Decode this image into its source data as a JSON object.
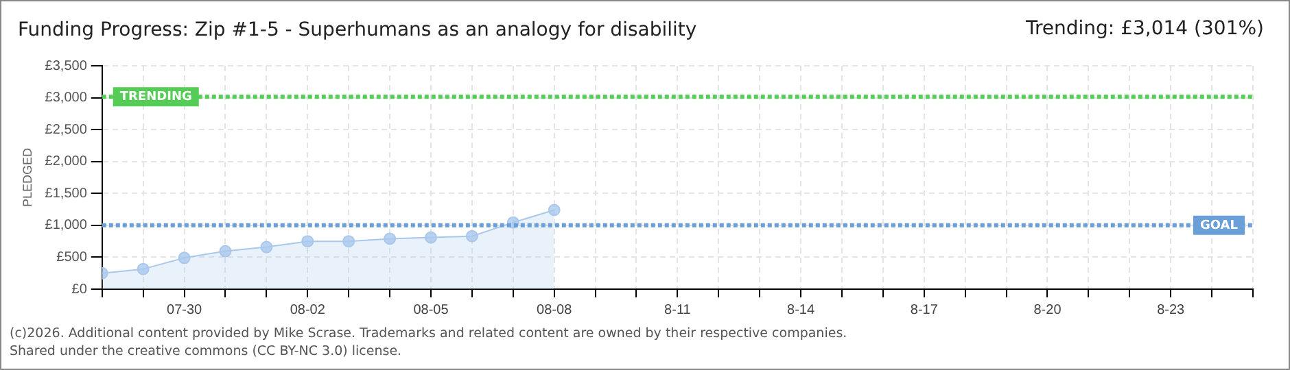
{
  "chart_data": {
    "type": "area",
    "title": "Funding Progress: Zip #1-5 - Superhumans as an analogy for disability",
    "subtitle": "Trending:  £3,014 (301%)",
    "ylabel": "PLEDGED",
    "x": [
      "--07-28",
      "--07-29",
      "--07-30",
      "--07-31",
      "--08-01",
      "--08-02",
      "--08-03",
      "--08-04",
      "--08-05",
      "--08-06",
      "--08-07",
      "--08-08"
    ],
    "series": [
      {
        "color": "#a9c8ec",
        "values": [
          250,
          315,
          490,
          595,
          660,
          750,
          750,
          790,
          810,
          830,
          1045,
          1240
        ]
      }
    ],
    "xlim": [
      "--07-28",
      "--08-25"
    ],
    "xticks": [
      {
        "value": "--07-28",
        "label": null
      },
      {
        "value": "--07-29",
        "label": null
      },
      {
        "value": "--07-30",
        "label": "07-30"
      },
      {
        "value": "--07-31",
        "label": null
      },
      {
        "value": "--08-01",
        "label": null
      },
      {
        "value": "--08-02",
        "label": "08-02"
      },
      {
        "value": "--08-03",
        "label": null
      },
      {
        "value": "--08-04",
        "label": null
      },
      {
        "value": "--08-05",
        "label": "08-05"
      },
      {
        "value": "--08-06",
        "label": null
      },
      {
        "value": "--08-07",
        "label": null
      },
      {
        "value": "--08-08",
        "label": "08-08"
      },
      {
        "value": "--08-09",
        "label": null
      },
      {
        "value": "--08-10",
        "label": null
      },
      {
        "value": "--08-11",
        "label": "8-11"
      },
      {
        "value": "--08-12",
        "label": null
      },
      {
        "value": "--08-13",
        "label": null
      },
      {
        "value": "--08-14",
        "label": "8-14"
      },
      {
        "value": "--08-15",
        "label": null
      },
      {
        "value": "--08-16",
        "label": null
      },
      {
        "value": "--08-17",
        "label": "8-17"
      },
      {
        "value": "--08-18",
        "label": null
      },
      {
        "value": "--08-19",
        "label": null
      },
      {
        "value": "--08-20",
        "label": "8-20"
      },
      {
        "value": "--08-21",
        "label": null
      },
      {
        "value": "--08-22",
        "label": null
      },
      {
        "value": "--08-23",
        "label": "8-23"
      },
      {
        "value": "--08-24",
        "label": null
      },
      {
        "value": "--08-25",
        "label": null
      }
    ],
    "ylim": [
      0,
      3500
    ],
    "yticks": [
      {
        "value": 0,
        "label": "£0"
      },
      {
        "value": 500,
        "label": "£500"
      },
      {
        "value": 1000,
        "label": "£1,000"
      },
      {
        "value": 1500,
        "label": "£1,500"
      },
      {
        "value": 2000,
        "label": "£2,000"
      },
      {
        "value": 2500,
        "label": "£2,500"
      },
      {
        "value": 3000,
        "label": "£3,000"
      },
      {
        "value": 3500,
        "label": "£3,500"
      }
    ],
    "ref_lines": [
      {
        "axis": "y",
        "value": 3014,
        "label": "TRENDING",
        "color": "#55cc55",
        "line_style": "dotted"
      },
      {
        "axis": "y",
        "value": 1000,
        "label": "GOAL",
        "color": "#6a9fd8",
        "line_style": "dotted"
      }
    ],
    "grid": true,
    "marker": "circle",
    "legend": false,
    "annotations": [
      "(c)2026. Additional content provided by Mike Scrase. Trademarks and related content are owned by their respective companies.",
      "Shared under the creative commons (CC BY-NC 3.0) license."
    ]
  }
}
